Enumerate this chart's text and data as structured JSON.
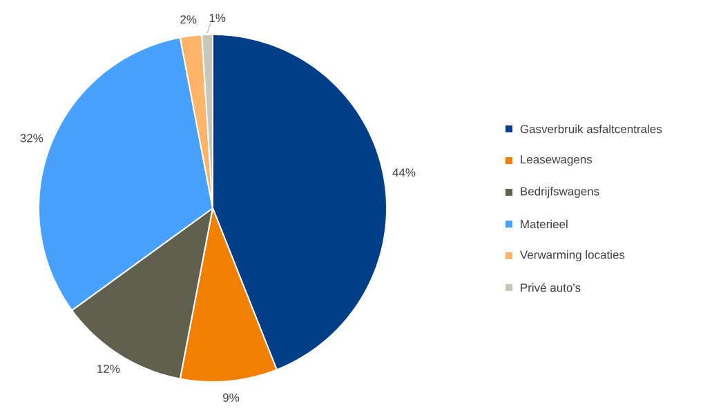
{
  "chart_data": {
    "type": "pie",
    "categories": [
      "Gasverbruik asfaltcentrales",
      "Leasewagens",
      "Bedrijfswagens",
      "Materieel",
      "Verwarming locaties",
      "Privé auto's"
    ],
    "values": [
      44,
      9,
      12,
      32,
      2,
      1
    ],
    "colors": [
      "#003f88",
      "#f28000",
      "#5f614e",
      "#48a0ff",
      "#ffb469",
      "#c9c8b8"
    ],
    "value_labels": [
      "44%",
      "9%",
      "12%",
      "32%",
      "2%",
      "1%"
    ],
    "legend": "right"
  }
}
